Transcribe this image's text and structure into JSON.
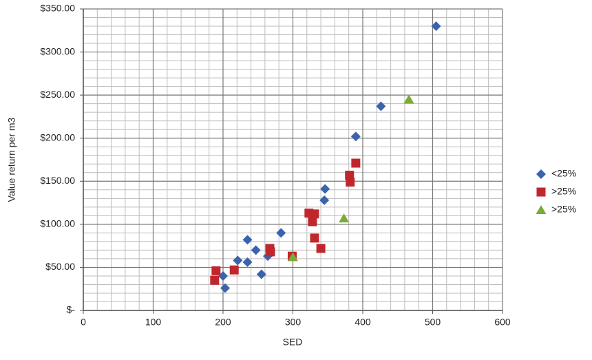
{
  "chart_data": {
    "type": "scatter",
    "x_label": "SED",
    "y_label": "Value return per m3",
    "xlim": [
      0,
      600
    ],
    "xticks": [
      0,
      100,
      200,
      300,
      400,
      500,
      600
    ],
    "ylim": [
      0,
      350
    ],
    "yticks": [
      {
        "value": 0,
        "label": "$-"
      },
      {
        "value": 50,
        "label": "$50.00"
      },
      {
        "value": 100,
        "label": "$100.00"
      },
      {
        "value": 150,
        "label": "$150.00"
      },
      {
        "value": 200,
        "label": "$200.00"
      },
      {
        "value": 250,
        "label": "$250.00"
      },
      {
        "value": 300,
        "label": "$300.00"
      },
      {
        "value": 350,
        "label": "$350.00"
      }
    ],
    "grid": true,
    "legend": "right",
    "series": [
      {
        "name": "<25%",
        "color": "#3b63ad",
        "marker": "diamond",
        "x": [
          505,
          426,
          390,
          346,
          345,
          283,
          235,
          247,
          221,
          235,
          264,
          255,
          200,
          203
        ],
        "values": [
          330,
          237,
          202,
          141,
          128,
          90,
          82,
          70,
          58,
          56,
          63,
          42,
          40,
          26
        ]
      },
      {
        "name": ">25%",
        "color": "#c0272d",
        "marker": "square",
        "x": [
          390,
          381,
          382,
          323,
          331,
          328,
          331,
          340,
          267,
          268,
          299,
          216,
          190,
          188
        ],
        "values": [
          171,
          157,
          149,
          113,
          112,
          103,
          84,
          72,
          72,
          68,
          63,
          47,
          46,
          35
        ]
      },
      {
        "name": ">25%",
        "color": "#7aab38",
        "marker": "triangle",
        "x": [
          466,
          373,
          300
        ],
        "values": [
          245,
          107,
          62
        ]
      }
    ]
  }
}
